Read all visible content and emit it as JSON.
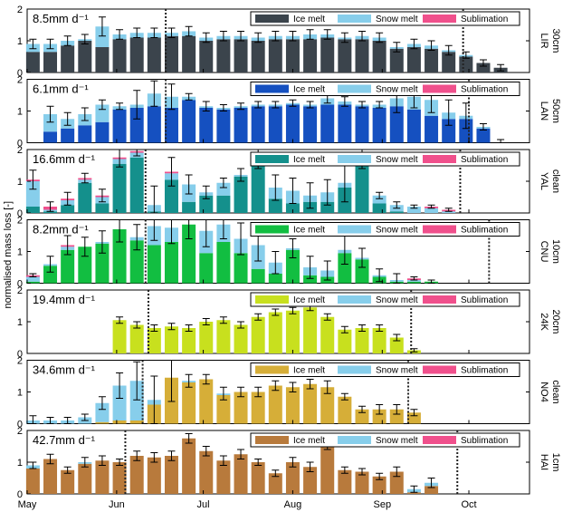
{
  "figure": {
    "ylabel": "normalised mass loss [-]",
    "xticks": [
      {
        "label": "May",
        "day": 0
      },
      {
        "label": "Jun",
        "day": 31
      },
      {
        "label": "Jul",
        "day": 61
      },
      {
        "label": "Aug",
        "day": 92
      },
      {
        "label": "Sep",
        "day": 123
      },
      {
        "label": "Oct",
        "day": 153
      }
    ],
    "legend": [
      {
        "name": "Ice melt",
        "kind": "ice"
      },
      {
        "name": "Snow melt",
        "kind": "snow"
      },
      {
        "name": "Sublimation",
        "kind": "sub"
      }
    ],
    "colors": {
      "snow": "#87CEEB",
      "sublimation": "#F0508C"
    }
  },
  "chart_data": [
    {
      "type": "bar",
      "stacked": true,
      "site": "LIR",
      "sub_label": "30cm",
      "rate_label": "8.5mm d⁻¹",
      "ice_color": "#3B444C",
      "ylim": [
        0,
        2
      ],
      "yticks": [
        0,
        1,
        2
      ],
      "x_unit": "days since 1 May",
      "bar_step_days": 6,
      "first_bar_day": 2,
      "vline_days": [
        48,
        151
      ],
      "ice": [
        0.65,
        0.65,
        0.85,
        1.0,
        0.8,
        1.05,
        1.1,
        1.1,
        1.15,
        1.15,
        1.0,
        1.05,
        1.05,
        1.0,
        1.05,
        1.05,
        1.05,
        1.1,
        1.05,
        1.05,
        1.0,
        0.75,
        0.8,
        0.75,
        0.65,
        0.5,
        0.3,
        0.15
      ],
      "snow": [
        0.25,
        0.25,
        0.15,
        0.05,
        0.65,
        0.15,
        0.15,
        0.15,
        0.1,
        0.15,
        0.1,
        0.1,
        0.1,
        0.1,
        0.1,
        0.1,
        0.15,
        0.1,
        0.05,
        0.1,
        0.1,
        0.05,
        0.1,
        0.1,
        0.05,
        0.05,
        0,
        0
      ],
      "sub": [
        0,
        0,
        0,
        0,
        0,
        0,
        0,
        0,
        0,
        0,
        0,
        0,
        0,
        0,
        0,
        0,
        0,
        0,
        0,
        0,
        0,
        0,
        0,
        0,
        0,
        0,
        0,
        0
      ],
      "err": [
        0.15,
        0.15,
        0.15,
        0.15,
        0.3,
        0.15,
        0.15,
        0.15,
        0.15,
        0.15,
        0.15,
        0.15,
        0.15,
        0.15,
        0.15,
        0.15,
        0.15,
        0.15,
        0.15,
        0.15,
        0.15,
        0.15,
        0.15,
        0.15,
        0.15,
        0.1,
        0.1,
        0.1
      ]
    },
    {
      "type": "bar",
      "stacked": true,
      "site": "LAN",
      "sub_label": "50cm",
      "rate_label": "6.1mm d⁻¹",
      "ice_color": "#1550C0",
      "ylim": [
        0,
        2
      ],
      "yticks": [
        0,
        1,
        2
      ],
      "x_unit": "days since 1 May",
      "bar_step_days": 6,
      "first_bar_day": 2,
      "vline_days": [
        48,
        153
      ],
      "ice": [
        null,
        0.35,
        0.45,
        0.55,
        0.65,
        1.05,
        1.1,
        1.15,
        1.1,
        1.35,
        1.1,
        1.05,
        1.1,
        1.15,
        1.15,
        1.2,
        1.15,
        1.2,
        1.2,
        1.15,
        1.1,
        1.15,
        1.05,
        0.85,
        0.75,
        0.75,
        0.45,
        0
      ],
      "snow": [
        null,
        0.55,
        0.3,
        0.35,
        0.55,
        0.1,
        0.1,
        0.4,
        0.35,
        0.1,
        0.05,
        0.05,
        0.05,
        0.05,
        0.05,
        0.05,
        0.05,
        0.2,
        0.1,
        0.05,
        0.1,
        0.25,
        0.4,
        0.5,
        0.2,
        0.1,
        0.05,
        0
      ],
      "sub": [
        null,
        0,
        0,
        0,
        0,
        0,
        0,
        0,
        0,
        0,
        0,
        0,
        0,
        0,
        0,
        0,
        0,
        0,
        0,
        0,
        0,
        0,
        0,
        0,
        0,
        0,
        0,
        0
      ],
      "err": [
        null,
        0.25,
        0.2,
        0.2,
        0.15,
        0.1,
        0.45,
        0.4,
        0.4,
        0.1,
        0.15,
        0.1,
        0.1,
        0.1,
        0.1,
        0.1,
        0.1,
        0.15,
        0.15,
        0.1,
        0.1,
        0.45,
        0.35,
        0.4,
        0.4,
        0.4,
        0.1,
        0.1
      ]
    },
    {
      "type": "bar",
      "stacked": true,
      "site": "YAL",
      "sub_label": "clean",
      "rate_label": "16.6mm d⁻¹",
      "ice_color": "#14908C",
      "ylim": [
        0,
        2
      ],
      "yticks": [
        0,
        1,
        2
      ],
      "x_unit": "days since 1 May",
      "bar_step_days": 6,
      "first_bar_day": 2,
      "vline_days": [
        41,
        150
      ],
      "ice": [
        0.2,
        0.05,
        0.25,
        0.95,
        0.3,
        1.55,
        1.75,
        0.05,
        1.05,
        0.35,
        0.55,
        0.55,
        1.15,
        1.6,
        0.45,
        0.3,
        0.35,
        0.35,
        0.8,
        1.65,
        0.3,
        0.05,
        0,
        0,
        0,
        0,
        0,
        0
      ],
      "snow": [
        0.8,
        0.05,
        0.15,
        0.1,
        0.2,
        0.15,
        0.15,
        0.2,
        0.2,
        0.55,
        0.1,
        0.4,
        0.05,
        0.15,
        0.35,
        0.4,
        0.2,
        0.3,
        0.15,
        0.05,
        0.25,
        0.2,
        0.2,
        0.15,
        0.05,
        0,
        0,
        0
      ],
      "sub": [
        0.05,
        0.1,
        0.05,
        0.05,
        0.05,
        0.05,
        0.05,
        0,
        0.05,
        0,
        0,
        0,
        0,
        0,
        0,
        0,
        0,
        0,
        0,
        0,
        0,
        0,
        0,
        0.05,
        0.05,
        0,
        0,
        0
      ],
      "err": [
        0.3,
        0.15,
        0.2,
        0.15,
        0.2,
        0.3,
        0.15,
        0.6,
        0.45,
        0.3,
        0.2,
        0.15,
        0.2,
        0.35,
        0.4,
        0.4,
        0.4,
        0.4,
        0.6,
        0.3,
        0.1,
        0.1,
        0.05,
        0.05,
        0.05,
        0,
        0,
        0
      ]
    },
    {
      "type": "bar",
      "stacked": true,
      "site": "CNU",
      "sub_label": "10cm",
      "rate_label": "8.2mm d⁻¹",
      "ice_color": "#12BE41",
      "ylim": [
        0,
        2
      ],
      "yticks": [
        0,
        1,
        2
      ],
      "x_unit": "days since 1 May",
      "bar_step_days": 6,
      "first_bar_day": 2,
      "vline_days": [
        41,
        160
      ],
      "ice": [
        0.05,
        0.55,
        1.05,
        1.15,
        1.25,
        1.7,
        1.35,
        1.2,
        1.3,
        1.85,
        0.95,
        1.3,
        0.95,
        0.45,
        0.3,
        1.05,
        0.25,
        0.2,
        0.95,
        0.75,
        0.2,
        0.05,
        0.05,
        0.05,
        0,
        0,
        0,
        0
      ],
      "snow": [
        0.15,
        0.05,
        0.1,
        0,
        0.05,
        0,
        0.1,
        0.6,
        0.45,
        0,
        0.7,
        0.55,
        0.45,
        0.75,
        0.35,
        0.05,
        0.25,
        0.2,
        0.1,
        0.05,
        0.05,
        0.05,
        0.05,
        0,
        0,
        0,
        0,
        0
      ],
      "sub": [
        0.05,
        0,
        0.05,
        0,
        0,
        0,
        0,
        0,
        0,
        0,
        0,
        0,
        0,
        0,
        0,
        0,
        0,
        0,
        0,
        0,
        0,
        0,
        0.05,
        0,
        0,
        0,
        0,
        0
      ],
      "err": [
        0.05,
        0.25,
        0.3,
        0.3,
        0.35,
        0.4,
        0.4,
        0.45,
        0.5,
        0.45,
        0.5,
        0.45,
        0.5,
        0.5,
        0.35,
        0.3,
        0.35,
        0.3,
        0.45,
        0.3,
        0.2,
        0.2,
        0.05,
        0.05,
        0,
        0,
        0,
        0
      ]
    },
    {
      "type": "bar",
      "stacked": true,
      "site": "24K",
      "sub_label": "20cm",
      "rate_label": "19.4mm d⁻¹",
      "ice_color": "#C8E01E",
      "ylim": [
        0,
        2
      ],
      "yticks": [
        0,
        1,
        2
      ],
      "x_unit": "days since 1 May",
      "bar_step_days": 6,
      "first_bar_day": 2,
      "vline_days": [
        42,
        133
      ],
      "ice": [
        null,
        null,
        null,
        null,
        null,
        1.05,
        0.9,
        0.8,
        0.85,
        0.8,
        1.0,
        1.05,
        0.9,
        1.15,
        1.3,
        1.35,
        1.45,
        1.15,
        0.75,
        0.8,
        0.8,
        0.5,
        0.1,
        null,
        null,
        null,
        null,
        null
      ],
      "snow": [
        null,
        null,
        null,
        null,
        null,
        0,
        0,
        0,
        0,
        0,
        0,
        0,
        0,
        0,
        0,
        0,
        0,
        0,
        0,
        0,
        0,
        0,
        0,
        null,
        null,
        null,
        null,
        null
      ],
      "sub": [
        null,
        null,
        null,
        null,
        null,
        0,
        0,
        0,
        0,
        0,
        0,
        0,
        0,
        0,
        0,
        0,
        0,
        0,
        0,
        0,
        0,
        0,
        0,
        null,
        null,
        null,
        null,
        null
      ],
      "err": [
        null,
        null,
        null,
        null,
        null,
        0.1,
        0.1,
        0.1,
        0.1,
        0.1,
        0.1,
        0.1,
        0.1,
        0.1,
        0.1,
        0.1,
        0.1,
        0.1,
        0.1,
        0.1,
        0.1,
        0.1,
        0.05,
        null,
        null,
        null,
        null,
        null
      ]
    },
    {
      "type": "bar",
      "stacked": true,
      "site": "NO4",
      "sub_label": "clean",
      "rate_label": "34.6mm d⁻¹",
      "ice_color": "#D6AE38",
      "ylim": [
        0,
        2
      ],
      "yticks": [
        0,
        1,
        2
      ],
      "x_unit": "days since 1 May",
      "bar_step_days": 6,
      "first_bar_day": 2,
      "vline_days": [
        40,
        132
      ],
      "ice": [
        0,
        0,
        0,
        0,
        0.05,
        0.1,
        0.1,
        0.6,
        1.45,
        1.3,
        1.4,
        0.9,
        1.0,
        1.0,
        1.2,
        1.15,
        1.25,
        1.15,
        0.85,
        0.45,
        0.45,
        0.45,
        0.35,
        null,
        null,
        null,
        null,
        null
      ],
      "snow": [
        0.1,
        0.1,
        0.1,
        0.2,
        0.6,
        1.1,
        1.25,
        0.15,
        0,
        0.05,
        0,
        0.05,
        0,
        0,
        0,
        0,
        0,
        0,
        0,
        0,
        0,
        0,
        0,
        null,
        null,
        null,
        null,
        null
      ],
      "sub": [
        0,
        0,
        0,
        0,
        0,
        0,
        0,
        0,
        0,
        0,
        0,
        0,
        0,
        0,
        0,
        0,
        0,
        0,
        0,
        0,
        0,
        0,
        0,
        null,
        null,
        null,
        null,
        null
      ],
      "err": [
        0.15,
        0.1,
        0.1,
        0.1,
        0.2,
        0.4,
        0.6,
        0.75,
        0.75,
        0.2,
        0.15,
        0.2,
        0.15,
        0.15,
        0.15,
        0.15,
        0.15,
        0.2,
        0.1,
        0.1,
        0.15,
        0.15,
        0.1,
        null,
        null,
        null,
        null,
        null
      ]
    },
    {
      "type": "bar",
      "stacked": true,
      "site": "HAI",
      "sub_label": "1cm",
      "rate_label": "42.7mm d⁻¹",
      "ice_color": "#B87A3C",
      "ylim": [
        0,
        2
      ],
      "yticks": [
        0,
        1,
        2
      ],
      "x_unit": "days since 1 May",
      "bar_step_days": 6,
      "first_bar_day": 2,
      "vline_days": [
        34,
        149
      ],
      "ice": [
        0.8,
        1.1,
        0.75,
        0.95,
        1.05,
        1.0,
        1.2,
        1.15,
        1.2,
        1.75,
        1.35,
        1.05,
        1.25,
        1.0,
        0.65,
        1.0,
        0.85,
        1.5,
        0.75,
        0.7,
        0.55,
        0.7,
        0.05,
        0.25,
        null,
        null,
        null,
        null
      ],
      "snow": [
        0.1,
        0,
        0,
        0.05,
        0,
        0,
        0,
        0,
        0,
        0,
        0,
        0,
        0,
        0,
        0,
        0,
        0,
        0,
        0,
        0,
        0,
        0,
        0.1,
        0.1,
        null,
        null,
        null,
        null
      ],
      "sub": [
        0,
        0,
        0,
        0,
        0,
        0,
        0,
        0,
        0,
        0,
        0,
        0,
        0,
        0,
        0,
        0,
        0,
        0,
        0,
        0,
        0,
        0,
        0,
        0,
        null,
        null,
        null,
        null
      ],
      "err": [
        0.1,
        0.15,
        0.1,
        0.15,
        0.15,
        0.1,
        0.15,
        0.15,
        0.15,
        0.15,
        0.15,
        0.15,
        0.15,
        0.1,
        0.1,
        0.15,
        0.15,
        0.1,
        0.1,
        0.1,
        0.1,
        0.15,
        0.1,
        0.15,
        null,
        null,
        null,
        null
      ]
    }
  ]
}
